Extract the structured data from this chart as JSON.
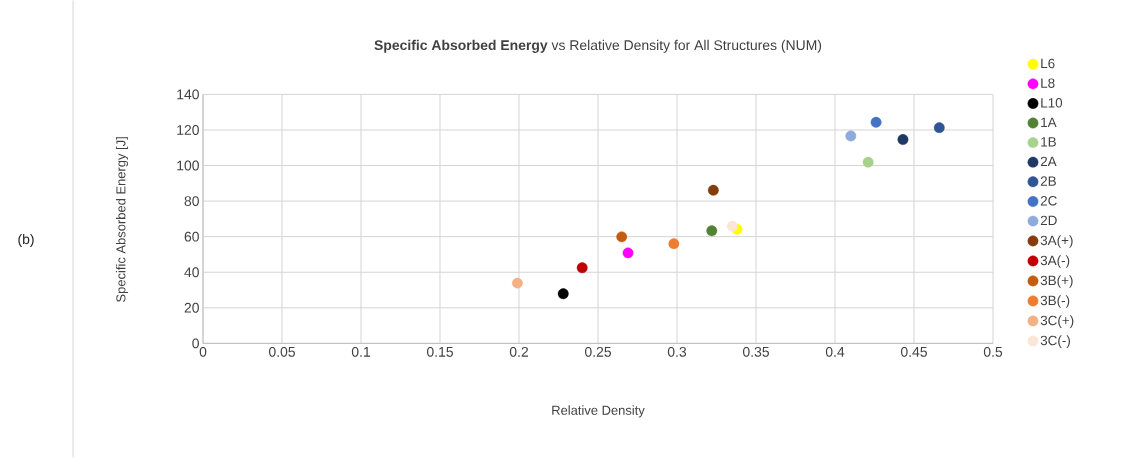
{
  "chart_data": {
    "type": "scatter",
    "title": "**Specific Absorbed Energy** vs Relative Density for All Structures (NUM)",
    "xlabel": "Relative Density",
    "ylabel": "Specific Absorbed Energy [J]",
    "annotations": [
      "(b)"
    ],
    "xlim": [
      0,
      0.5
    ],
    "ylim": [
      0,
      140
    ],
    "xticks": [
      0,
      0.05,
      0.1,
      0.15,
      0.2,
      0.25,
      0.3,
      0.35,
      0.4,
      0.45,
      0.5
    ],
    "yticks": [
      0,
      20,
      40,
      60,
      80,
      100,
      120,
      140
    ],
    "grid": true,
    "legend": "right",
    "marker": "circle",
    "series": [
      {
        "name": "L6",
        "color": "#ffff00",
        "x": [
          0.338
        ],
        "values": [
          64.2
        ]
      },
      {
        "name": "L8",
        "color": "#ff00ff",
        "x": [
          0.269
        ],
        "values": [
          50.9
        ]
      },
      {
        "name": "L10",
        "color": "#000000",
        "x": [
          0.228
        ],
        "values": [
          27.9
        ]
      },
      {
        "name": "1A",
        "color": "#548235",
        "x": [
          0.322
        ],
        "values": [
          63.3
        ]
      },
      {
        "name": "1B",
        "color": "#a9d18e",
        "x": [
          0.421
        ],
        "values": [
          101.9
        ]
      },
      {
        "name": "2A",
        "color": "#203864",
        "x": [
          0.443
        ],
        "values": [
          114.6
        ]
      },
      {
        "name": "2B",
        "color": "#2f5597",
        "x": [
          0.466
        ],
        "values": [
          121.3
        ]
      },
      {
        "name": "2C",
        "color": "#4472c4",
        "x": [
          0.426
        ],
        "values": [
          124.3
        ]
      },
      {
        "name": "2D",
        "color": "#8faadc",
        "x": [
          0.41
        ],
        "values": [
          116.6
        ]
      },
      {
        "name": "3A(+)",
        "color": "#843c0c",
        "x": [
          0.323
        ],
        "values": [
          86.1
        ]
      },
      {
        "name": "3A(-)",
        "color": "#c00000",
        "x": [
          0.24
        ],
        "values": [
          42.5
        ]
      },
      {
        "name": "3B(+)",
        "color": "#c55a11",
        "x": [
          0.265
        ],
        "values": [
          59.9
        ]
      },
      {
        "name": "3B(-)",
        "color": "#ed7d31",
        "x": [
          0.298
        ],
        "values": [
          56.0
        ]
      },
      {
        "name": "3C(+)",
        "color": "#f4b183",
        "x": [
          0.199
        ],
        "values": [
          33.9
        ]
      },
      {
        "name": "3C(-)",
        "color": "#fbe5d6",
        "x": [
          0.335
        ],
        "values": [
          65.9
        ]
      }
    ]
  }
}
